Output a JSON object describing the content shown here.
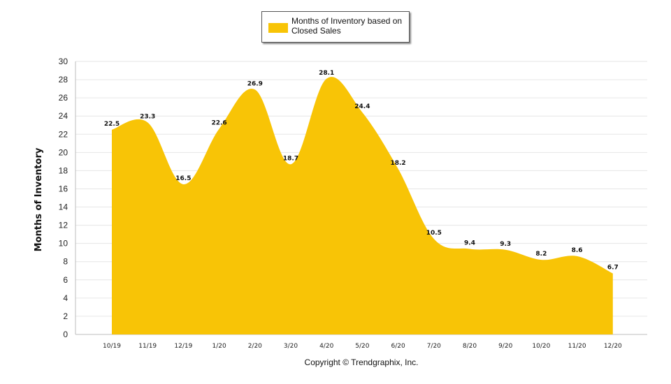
{
  "chart_data": {
    "type": "area",
    "categories": [
      "10/19",
      "11/19",
      "12/19",
      "1/20",
      "2/20",
      "3/20",
      "4/20",
      "5/20",
      "6/20",
      "7/20",
      "8/20",
      "9/20",
      "10/20",
      "11/20",
      "12/20"
    ],
    "series": [
      {
        "name": "Months of Inventory based on Closed Sales",
        "values": [
          22.5,
          23.3,
          16.5,
          22.6,
          26.9,
          18.7,
          28.1,
          24.4,
          18.2,
          10.5,
          9.4,
          9.3,
          8.2,
          8.6,
          6.7
        ]
      }
    ],
    "ylabel": "Months of Inventory",
    "ylim": [
      0,
      30
    ],
    "yticks": [
      0,
      2,
      4,
      6,
      8,
      10,
      12,
      14,
      16,
      18,
      20,
      22,
      24,
      26,
      28,
      30
    ],
    "grid": true,
    "legend_position": "top-center",
    "colors": {
      "fill": "#F8C406",
      "grid": "#e6e6e6",
      "axis": "#bdbdbd"
    }
  },
  "legend": {
    "label": "Months of Inventory based on Closed Sales"
  },
  "footer": {
    "copyright": "Copyright © Trendgraphix, Inc."
  }
}
